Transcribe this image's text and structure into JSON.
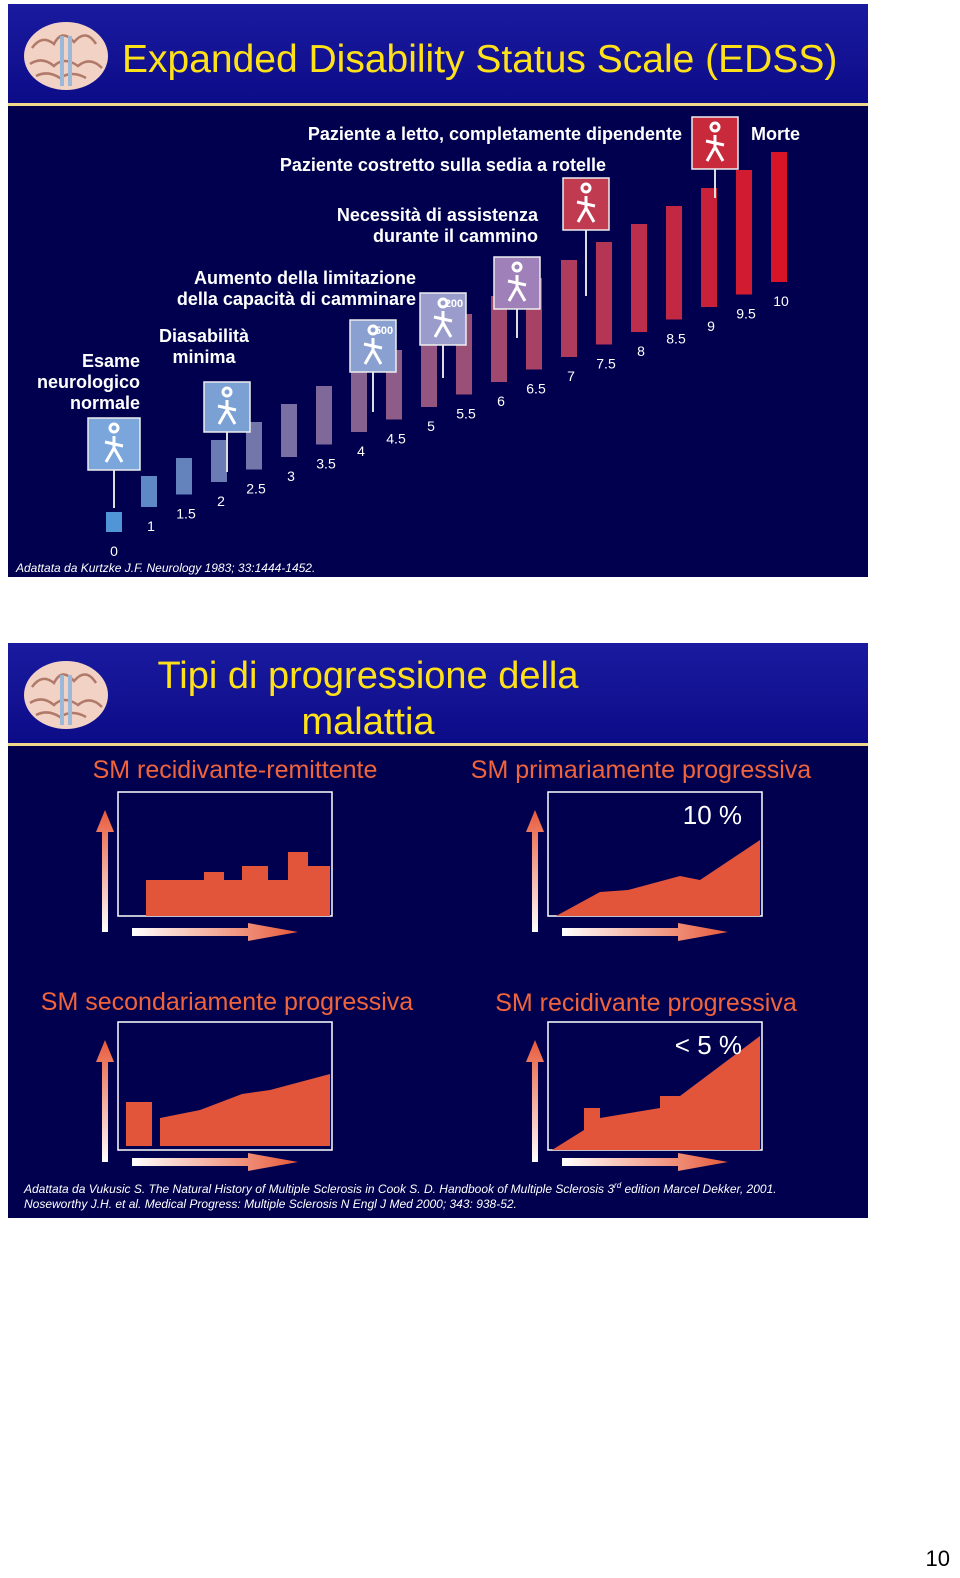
{
  "slide1": {
    "title": "Expanded Disability Status Scale (EDSS)",
    "annotations": [
      {
        "lines": [
          "Paziente a letto, completamente dipendente"
        ]
      },
      {
        "lines": [
          "Morte"
        ]
      },
      {
        "lines": [
          "Paziente costretto sulla sedia a rotelle"
        ]
      },
      {
        "lines": [
          "Necessità di assistenza",
          "durante il cammino"
        ]
      },
      {
        "lines": [
          "Aumento della limitazione",
          "della capacità di camminare"
        ]
      },
      {
        "lines": [
          "Diasabilità",
          "minima"
        ]
      },
      {
        "lines": [
          "Esame",
          "neurologico",
          "normale"
        ]
      }
    ],
    "steps": [
      0,
      1,
      1.5,
      2,
      2.5,
      3,
      3.5,
      4,
      4.5,
      5,
      5.5,
      6,
      6.5,
      7,
      7.5,
      8,
      8.5,
      9,
      9.5,
      10
    ],
    "icon_labels": [
      "500",
      "200"
    ],
    "source": "Adattata da Kurtzke J.F. Neurology 1983; 33:1444-1452."
  },
  "slide2": {
    "title": [
      "Tipi di progressione della",
      "malattia"
    ],
    "panels": [
      {
        "title": "SM recidivante-remittente"
      },
      {
        "title": "SM primariamente progressiva",
        "note": "10 %"
      },
      {
        "title": "SM secondariamente progressiva"
      },
      {
        "title": "SM recidivante progressiva",
        "note": "< 5 %"
      }
    ],
    "source": [
      {
        "parts": [
          "Adattata da Vukusic S. The Natural History of Multiple Sclerosis in Cook S. D. Handbook of Multiple Sclerosis 3",
          "rd",
          " edition Marcel Dekker, 2001."
        ]
      },
      {
        "parts": [
          "Noseworthy J.H. et al. Medical Progress: Multiple Sclerosis N Engl J Med 2000; 343: 938-52."
        ]
      }
    ]
  },
  "page_number": "10"
}
